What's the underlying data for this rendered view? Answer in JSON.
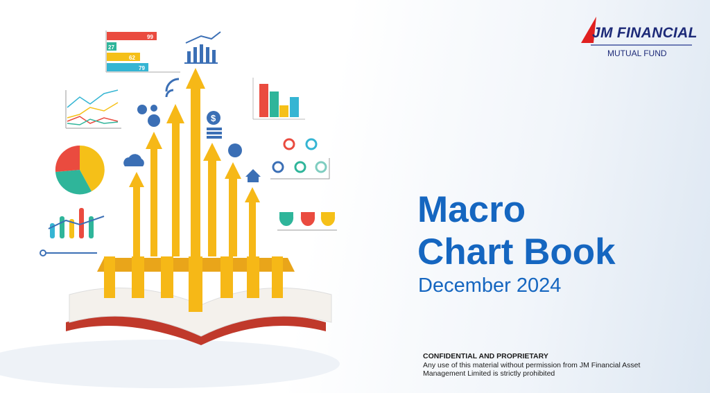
{
  "logo": {
    "name": "JM FINANCIAL",
    "sub": "MUTUAL FUND"
  },
  "title": {
    "line1": "Macro",
    "line2": "Chart Book"
  },
  "subtitle": "December 2024",
  "disclaimer": {
    "heading": "CONFIDENTIAL AND PROPRIETARY",
    "line1": "Any use of this material without permission from JM Financial Asset",
    "line2": "Management Limited is strictly prohibited"
  },
  "illustration": {
    "bar_labels": [
      "99",
      "27",
      "62",
      "79"
    ],
    "colors": {
      "arrow": "#f6b817",
      "red": "#ea4b3f",
      "teal": "#2fb59a",
      "blue": "#3b8fcf",
      "cyan": "#35b5d3",
      "yellow": "#f5c018"
    }
  },
  "colors": {
    "title": "#1566c0",
    "logo": "#1d2a78",
    "logo_accent": "#e02020"
  }
}
